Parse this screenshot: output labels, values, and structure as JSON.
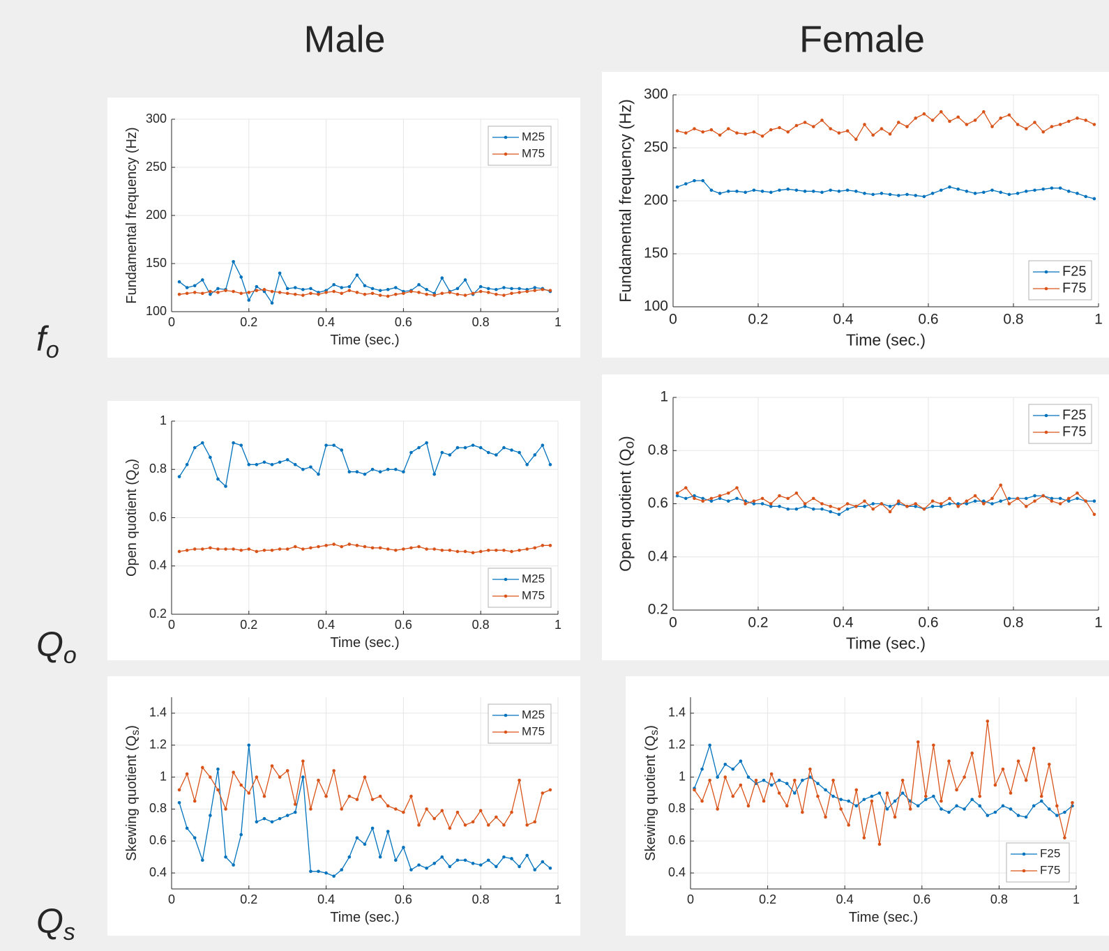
{
  "header": {
    "columns": [
      "Male",
      "Female"
    ],
    "rows": [
      {
        "symbol": "f",
        "sub": "o"
      },
      {
        "symbol": "Q",
        "sub": "o"
      },
      {
        "symbol": "Q",
        "sub": "s"
      }
    ]
  },
  "chart_data": [
    {
      "type": "line",
      "ylabel": [
        "Fundamental frequency (Hz)"
      ],
      "xlabel": "Time (sec.)",
      "xlim": [
        0,
        1
      ],
      "xticks": [
        0,
        0.2,
        0.4,
        0.6,
        0.8,
        1
      ],
      "ylim": [
        100,
        300
      ],
      "yticks": [
        100,
        150,
        200,
        250,
        300
      ],
      "grid": true,
      "legend": "northeast",
      "x": [
        0.02,
        0.04,
        0.06,
        0.08,
        0.1,
        0.12,
        0.14,
        0.16,
        0.18,
        0.2,
        0.22,
        0.24,
        0.26,
        0.28,
        0.3,
        0.32,
        0.34,
        0.36,
        0.38,
        0.4,
        0.42,
        0.44,
        0.46,
        0.48,
        0.5,
        0.52,
        0.54,
        0.56,
        0.58,
        0.6,
        0.62,
        0.64,
        0.66,
        0.68,
        0.7,
        0.72,
        0.74,
        0.76,
        0.78,
        0.8,
        0.82,
        0.84,
        0.86,
        0.88,
        0.9,
        0.92,
        0.94,
        0.96,
        0.98
      ],
      "series": [
        {
          "name": "M25",
          "color": "#0072bd",
          "values": [
            131,
            125,
            127,
            133,
            118,
            124,
            123,
            152,
            136,
            112,
            126,
            121,
            109,
            140,
            124,
            125,
            123,
            124,
            120,
            122,
            128,
            125,
            126,
            138,
            127,
            124,
            122,
            123,
            125,
            121,
            122,
            128,
            123,
            119,
            135,
            121,
            124,
            133,
            118,
            126,
            124,
            123,
            125,
            124,
            124,
            123,
            125,
            124,
            121
          ]
        },
        {
          "name": "M75",
          "color": "#d95319",
          "values": [
            118,
            119,
            120,
            119,
            121,
            120,
            122,
            121,
            119,
            120,
            122,
            123,
            121,
            120,
            119,
            118,
            117,
            119,
            118,
            120,
            121,
            119,
            122,
            120,
            118,
            119,
            117,
            116,
            118,
            119,
            121,
            120,
            118,
            117,
            119,
            120,
            118,
            117,
            119,
            121,
            120,
            118,
            117,
            119,
            120,
            121,
            122,
            123,
            122
          ]
        }
      ]
    },
    {
      "type": "line",
      "ylabel": [
        "Open quotient (Q",
        "o",
        ")"
      ],
      "xlabel": "Time (sec.)",
      "xlim": [
        0,
        1
      ],
      "xticks": [
        0,
        0.2,
        0.4,
        0.6,
        0.8,
        1
      ],
      "ylim": [
        0.2,
        1
      ],
      "yticks": [
        0.2,
        0.4,
        0.6,
        0.8,
        1
      ],
      "grid": true,
      "legend": "southeast",
      "x": [
        0.02,
        0.04,
        0.06,
        0.08,
        0.1,
        0.12,
        0.14,
        0.16,
        0.18,
        0.2,
        0.22,
        0.24,
        0.26,
        0.28,
        0.3,
        0.32,
        0.34,
        0.36,
        0.38,
        0.4,
        0.42,
        0.44,
        0.46,
        0.48,
        0.5,
        0.52,
        0.54,
        0.56,
        0.58,
        0.6,
        0.62,
        0.64,
        0.66,
        0.68,
        0.7,
        0.72,
        0.74,
        0.76,
        0.78,
        0.8,
        0.82,
        0.84,
        0.86,
        0.88,
        0.9,
        0.92,
        0.94,
        0.96,
        0.98
      ],
      "series": [
        {
          "name": "M25",
          "color": "#0072bd",
          "values": [
            0.77,
            0.82,
            0.89,
            0.91,
            0.85,
            0.76,
            0.73,
            0.91,
            0.9,
            0.82,
            0.82,
            0.83,
            0.82,
            0.83,
            0.84,
            0.82,
            0.8,
            0.81,
            0.78,
            0.9,
            0.9,
            0.88,
            0.79,
            0.79,
            0.78,
            0.8,
            0.79,
            0.8,
            0.8,
            0.79,
            0.87,
            0.89,
            0.91,
            0.78,
            0.87,
            0.86,
            0.89,
            0.89,
            0.9,
            0.89,
            0.87,
            0.86,
            0.89,
            0.88,
            0.87,
            0.82,
            0.86,
            0.9,
            0.82
          ]
        },
        {
          "name": "M75",
          "color": "#d95319",
          "values": [
            0.46,
            0.465,
            0.47,
            0.47,
            0.475,
            0.47,
            0.47,
            0.47,
            0.465,
            0.47,
            0.46,
            0.465,
            0.465,
            0.47,
            0.47,
            0.48,
            0.47,
            0.475,
            0.48,
            0.485,
            0.49,
            0.48,
            0.49,
            0.485,
            0.48,
            0.475,
            0.475,
            0.47,
            0.465,
            0.47,
            0.475,
            0.48,
            0.47,
            0.47,
            0.465,
            0.465,
            0.46,
            0.46,
            0.455,
            0.46,
            0.465,
            0.465,
            0.465,
            0.46,
            0.465,
            0.47,
            0.475,
            0.485,
            0.485
          ]
        }
      ]
    },
    {
      "type": "line",
      "ylabel": [
        "Skewing quotient (Q",
        "s",
        ")"
      ],
      "xlabel": "Time (sec.)",
      "xlim": [
        0,
        1
      ],
      "xticks": [
        0,
        0.2,
        0.4,
        0.6,
        0.8,
        1
      ],
      "ylim": [
        0.3,
        1.5
      ],
      "yticks": [
        0.4,
        0.6,
        0.8,
        1,
        1.2,
        1.4
      ],
      "grid": true,
      "legend": "northeast",
      "x": [
        0.02,
        0.04,
        0.06,
        0.08,
        0.1,
        0.12,
        0.14,
        0.16,
        0.18,
        0.2,
        0.22,
        0.24,
        0.26,
        0.28,
        0.3,
        0.32,
        0.34,
        0.36,
        0.38,
        0.4,
        0.42,
        0.44,
        0.46,
        0.48,
        0.5,
        0.52,
        0.54,
        0.56,
        0.58,
        0.6,
        0.62,
        0.64,
        0.66,
        0.68,
        0.7,
        0.72,
        0.74,
        0.76,
        0.78,
        0.8,
        0.82,
        0.84,
        0.86,
        0.88,
        0.9,
        0.92,
        0.94,
        0.96,
        0.98
      ],
      "series": [
        {
          "name": "M25",
          "color": "#0072bd",
          "values": [
            0.84,
            0.68,
            0.62,
            0.48,
            0.76,
            1.05,
            0.5,
            0.45,
            0.64,
            1.2,
            0.72,
            0.74,
            0.72,
            0.74,
            0.76,
            0.78,
            1.0,
            0.41,
            0.41,
            0.4,
            0.38,
            0.42,
            0.5,
            0.62,
            0.58,
            0.68,
            0.5,
            0.66,
            0.48,
            0.56,
            0.42,
            0.45,
            0.43,
            0.46,
            0.5,
            0.44,
            0.48,
            0.48,
            0.46,
            0.45,
            0.48,
            0.44,
            0.5,
            0.49,
            0.44,
            0.51,
            0.42,
            0.47,
            0.43
          ]
        },
        {
          "name": "M75",
          "color": "#d95319",
          "values": [
            0.92,
            1.02,
            0.85,
            1.06,
            1.0,
            0.92,
            0.8,
            1.03,
            0.95,
            0.9,
            1.0,
            0.88,
            1.07,
            1.0,
            1.04,
            0.83,
            1.1,
            0.8,
            0.98,
            0.88,
            1.04,
            0.8,
            0.88,
            0.86,
            1.0,
            0.86,
            0.88,
            0.82,
            0.8,
            0.78,
            0.88,
            0.7,
            0.8,
            0.74,
            0.79,
            0.68,
            0.78,
            0.7,
            0.72,
            0.79,
            0.7,
            0.75,
            0.7,
            0.78,
            0.98,
            0.7,
            0.72,
            0.9,
            0.92
          ]
        }
      ]
    },
    {
      "type": "line",
      "ylabel": [
        "Fundamental frequency (Hz)"
      ],
      "xlabel": "Time (sec.)",
      "xlim": [
        0,
        1
      ],
      "xticks": [
        0,
        0.2,
        0.4,
        0.6,
        0.8,
        1
      ],
      "ylim": [
        100,
        300
      ],
      "yticks": [
        100,
        150,
        200,
        250,
        300
      ],
      "grid": true,
      "legend": "southeast",
      "x": [
        0.01,
        0.03,
        0.05,
        0.07,
        0.09,
        0.11,
        0.13,
        0.15,
        0.17,
        0.19,
        0.21,
        0.23,
        0.25,
        0.27,
        0.29,
        0.31,
        0.33,
        0.35,
        0.37,
        0.39,
        0.41,
        0.43,
        0.45,
        0.47,
        0.49,
        0.51,
        0.53,
        0.55,
        0.57,
        0.59,
        0.61,
        0.63,
        0.65,
        0.67,
        0.69,
        0.71,
        0.73,
        0.75,
        0.77,
        0.79,
        0.81,
        0.83,
        0.85,
        0.87,
        0.89,
        0.91,
        0.93,
        0.95,
        0.97,
        0.99
      ],
      "series": [
        {
          "name": "F25",
          "color": "#0072bd",
          "values": [
            213,
            216,
            219,
            219,
            210,
            207,
            209,
            209,
            208,
            210,
            209,
            208,
            210,
            211,
            210,
            209,
            209,
            208,
            210,
            209,
            210,
            209,
            207,
            206,
            207,
            206,
            205,
            206,
            205,
            204,
            207,
            210,
            213,
            211,
            209,
            207,
            208,
            210,
            208,
            206,
            207,
            209,
            210,
            211,
            212,
            212,
            209,
            207,
            204,
            202
          ]
        },
        {
          "name": "F75",
          "color": "#d95319",
          "values": [
            266,
            264,
            268,
            265,
            267,
            262,
            268,
            264,
            263,
            265,
            261,
            267,
            269,
            265,
            271,
            274,
            270,
            276,
            268,
            264,
            266,
            258,
            272,
            262,
            268,
            263,
            274,
            270,
            278,
            282,
            276,
            284,
            275,
            279,
            272,
            276,
            284,
            270,
            278,
            281,
            272,
            268,
            274,
            265,
            270,
            272,
            275,
            278,
            276,
            272
          ]
        }
      ]
    },
    {
      "type": "line",
      "ylabel": [
        "Open quotient (Q",
        "o",
        ")"
      ],
      "xlabel": "Time (sec.)",
      "xlim": [
        0,
        1
      ],
      "xticks": [
        0,
        0.2,
        0.4,
        0.6,
        0.8,
        1
      ],
      "ylim": [
        0.2,
        1
      ],
      "yticks": [
        0.2,
        0.4,
        0.6,
        0.8,
        1
      ],
      "grid": true,
      "legend": "northeast",
      "x": [
        0.01,
        0.03,
        0.05,
        0.07,
        0.09,
        0.11,
        0.13,
        0.15,
        0.17,
        0.19,
        0.21,
        0.23,
        0.25,
        0.27,
        0.29,
        0.31,
        0.33,
        0.35,
        0.37,
        0.39,
        0.41,
        0.43,
        0.45,
        0.47,
        0.49,
        0.51,
        0.53,
        0.55,
        0.57,
        0.59,
        0.61,
        0.63,
        0.65,
        0.67,
        0.69,
        0.71,
        0.73,
        0.75,
        0.77,
        0.79,
        0.81,
        0.83,
        0.85,
        0.87,
        0.89,
        0.91,
        0.93,
        0.95,
        0.97,
        0.99
      ],
      "series": [
        {
          "name": "F25",
          "color": "#0072bd",
          "values": [
            0.63,
            0.62,
            0.63,
            0.62,
            0.61,
            0.62,
            0.61,
            0.62,
            0.61,
            0.6,
            0.6,
            0.59,
            0.59,
            0.58,
            0.58,
            0.59,
            0.58,
            0.58,
            0.57,
            0.56,
            0.58,
            0.59,
            0.59,
            0.6,
            0.6,
            0.59,
            0.6,
            0.59,
            0.59,
            0.58,
            0.59,
            0.59,
            0.6,
            0.6,
            0.6,
            0.61,
            0.61,
            0.6,
            0.61,
            0.62,
            0.62,
            0.62,
            0.63,
            0.63,
            0.62,
            0.62,
            0.61,
            0.62,
            0.61,
            0.61
          ]
        },
        {
          "name": "F75",
          "color": "#d95319",
          "values": [
            0.64,
            0.66,
            0.62,
            0.61,
            0.62,
            0.63,
            0.64,
            0.66,
            0.6,
            0.61,
            0.62,
            0.6,
            0.63,
            0.62,
            0.64,
            0.6,
            0.62,
            0.6,
            0.59,
            0.58,
            0.6,
            0.59,
            0.61,
            0.58,
            0.6,
            0.57,
            0.61,
            0.59,
            0.6,
            0.58,
            0.61,
            0.6,
            0.62,
            0.59,
            0.61,
            0.63,
            0.6,
            0.62,
            0.67,
            0.6,
            0.62,
            0.59,
            0.61,
            0.63,
            0.61,
            0.6,
            0.62,
            0.64,
            0.61,
            0.56
          ]
        }
      ]
    },
    {
      "type": "line",
      "ylabel": [
        "Skewing quotient (Q",
        "s",
        ")"
      ],
      "xlabel": "Time (sec.)",
      "xlim": [
        0,
        1
      ],
      "xticks": [
        0,
        0.2,
        0.4,
        0.6,
        0.8,
        1
      ],
      "ylim": [
        0.3,
        1.5
      ],
      "yticks": [
        0.4,
        0.6,
        0.8,
        1,
        1.2,
        1.4
      ],
      "grid": true,
      "legend": "southeast",
      "x": [
        0.01,
        0.03,
        0.05,
        0.07,
        0.09,
        0.11,
        0.13,
        0.15,
        0.17,
        0.19,
        0.21,
        0.23,
        0.25,
        0.27,
        0.29,
        0.31,
        0.33,
        0.35,
        0.37,
        0.39,
        0.41,
        0.43,
        0.45,
        0.47,
        0.49,
        0.51,
        0.53,
        0.55,
        0.57,
        0.59,
        0.61,
        0.63,
        0.65,
        0.67,
        0.69,
        0.71,
        0.73,
        0.75,
        0.77,
        0.79,
        0.81,
        0.83,
        0.85,
        0.87,
        0.89,
        0.91,
        0.93,
        0.95,
        0.97,
        0.99
      ],
      "series": [
        {
          "name": "F25",
          "color": "#0072bd",
          "values": [
            0.93,
            1.05,
            1.2,
            1.0,
            1.08,
            1.05,
            1.1,
            1.0,
            0.96,
            0.98,
            0.95,
            0.98,
            0.96,
            0.9,
            0.98,
            1.0,
            0.96,
            0.92,
            0.88,
            0.86,
            0.85,
            0.82,
            0.86,
            0.88,
            0.9,
            0.8,
            0.85,
            0.9,
            0.85,
            0.82,
            0.86,
            0.88,
            0.8,
            0.78,
            0.82,
            0.8,
            0.86,
            0.82,
            0.76,
            0.78,
            0.82,
            0.8,
            0.76,
            0.75,
            0.82,
            0.85,
            0.8,
            0.76,
            0.78,
            0.82
          ]
        },
        {
          "name": "F75",
          "color": "#d95319",
          "values": [
            0.92,
            0.85,
            0.98,
            0.8,
            1.0,
            0.88,
            0.95,
            0.82,
            0.98,
            0.85,
            1.02,
            0.9,
            0.82,
            0.98,
            0.78,
            1.05,
            0.88,
            0.75,
            0.98,
            0.8,
            0.7,
            0.92,
            0.62,
            0.85,
            0.58,
            0.9,
            0.75,
            0.98,
            0.8,
            1.22,
            0.88,
            1.2,
            0.85,
            1.1,
            0.92,
            1.0,
            1.15,
            0.88,
            1.35,
            0.95,
            1.05,
            0.9,
            1.1,
            0.98,
            1.18,
            0.88,
            1.08,
            0.82,
            0.62,
            0.84
          ]
        }
      ]
    }
  ]
}
